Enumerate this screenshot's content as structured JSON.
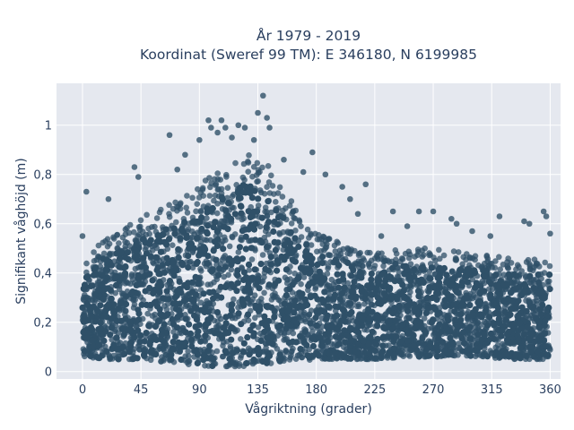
{
  "chart_data": {
    "type": "scatter",
    "title_line1": "År 1979 - 2019",
    "title_line2": "Koordinat (Sweref 99 TM): E 346180, N 6199985",
    "xlabel": "Vågriktning (grader)",
    "ylabel": "Signifikant våghöjd (m)",
    "xlim": [
      -20,
      368
    ],
    "ylim": [
      -0.03,
      1.17
    ],
    "xticks": [
      0,
      45,
      90,
      135,
      180,
      225,
      270,
      315,
      360
    ],
    "xtick_labels": [
      "0",
      "45",
      "90",
      "135",
      "180",
      "225",
      "270",
      "315",
      "360"
    ],
    "yticks": [
      0,
      0.2,
      0.4,
      0.6,
      0.8,
      1
    ],
    "ytick_labels": [
      "0",
      "0,2",
      "0,4",
      "0,6",
      "0,8",
      "1"
    ],
    "grid": true,
    "marker_color": "#2f5068",
    "plot_background": "#e5e8ef",
    "envelope_direction": [
      0,
      20,
      40,
      60,
      80,
      100,
      120,
      130,
      140,
      160,
      180,
      200,
      225,
      250,
      270,
      300,
      330,
      360
    ],
    "envelope_upper_height": [
      0.45,
      0.55,
      0.62,
      0.66,
      0.72,
      0.8,
      0.88,
      0.9,
      0.86,
      0.7,
      0.56,
      0.52,
      0.48,
      0.5,
      0.5,
      0.48,
      0.46,
      0.46
    ],
    "envelope_lower_height": [
      0.06,
      0.05,
      0.05,
      0.04,
      0.03,
      0.02,
      0.02,
      0.02,
      0.03,
      0.04,
      0.05,
      0.05,
      0.05,
      0.06,
      0.06,
      0.06,
      0.05,
      0.05
    ],
    "outliers": [
      {
        "x": 0,
        "y": 0.55
      },
      {
        "x": 3,
        "y": 0.73
      },
      {
        "x": 20,
        "y": 0.7
      },
      {
        "x": 40,
        "y": 0.83
      },
      {
        "x": 43,
        "y": 0.79
      },
      {
        "x": 67,
        "y": 0.96
      },
      {
        "x": 73,
        "y": 0.82
      },
      {
        "x": 79,
        "y": 0.88
      },
      {
        "x": 97,
        "y": 1.02
      },
      {
        "x": 99,
        "y": 0.99
      },
      {
        "x": 107,
        "y": 1.02
      },
      {
        "x": 110,
        "y": 0.99
      },
      {
        "x": 115,
        "y": 0.95
      },
      {
        "x": 125,
        "y": 0.99
      },
      {
        "x": 132,
        "y": 0.94
      },
      {
        "x": 135,
        "y": 1.05
      },
      {
        "x": 139,
        "y": 1.12
      },
      {
        "x": 142,
        "y": 1.03
      },
      {
        "x": 144,
        "y": 0.99
      },
      {
        "x": 155,
        "y": 0.86
      },
      {
        "x": 170,
        "y": 0.81
      },
      {
        "x": 177,
        "y": 0.89
      },
      {
        "x": 187,
        "y": 0.8
      },
      {
        "x": 200,
        "y": 0.75
      },
      {
        "x": 218,
        "y": 0.76
      },
      {
        "x": 206,
        "y": 0.7
      },
      {
        "x": 212,
        "y": 0.64
      },
      {
        "x": 239,
        "y": 0.65
      },
      {
        "x": 259,
        "y": 0.65
      },
      {
        "x": 270,
        "y": 0.65
      },
      {
        "x": 284,
        "y": 0.62
      },
      {
        "x": 288,
        "y": 0.6
      },
      {
        "x": 300,
        "y": 0.57
      },
      {
        "x": 321,
        "y": 0.63
      },
      {
        "x": 340,
        "y": 0.61
      },
      {
        "x": 344,
        "y": 0.6
      },
      {
        "x": 355,
        "y": 0.65
      },
      {
        "x": 357,
        "y": 0.63
      },
      {
        "x": 360,
        "y": 0.56
      },
      {
        "x": 230,
        "y": 0.55
      },
      {
        "x": 250,
        "y": 0.59
      },
      {
        "x": 314,
        "y": 0.55
      },
      {
        "x": 90,
        "y": 0.94
      },
      {
        "x": 104,
        "y": 0.97
      },
      {
        "x": 120,
        "y": 1.0
      }
    ]
  }
}
